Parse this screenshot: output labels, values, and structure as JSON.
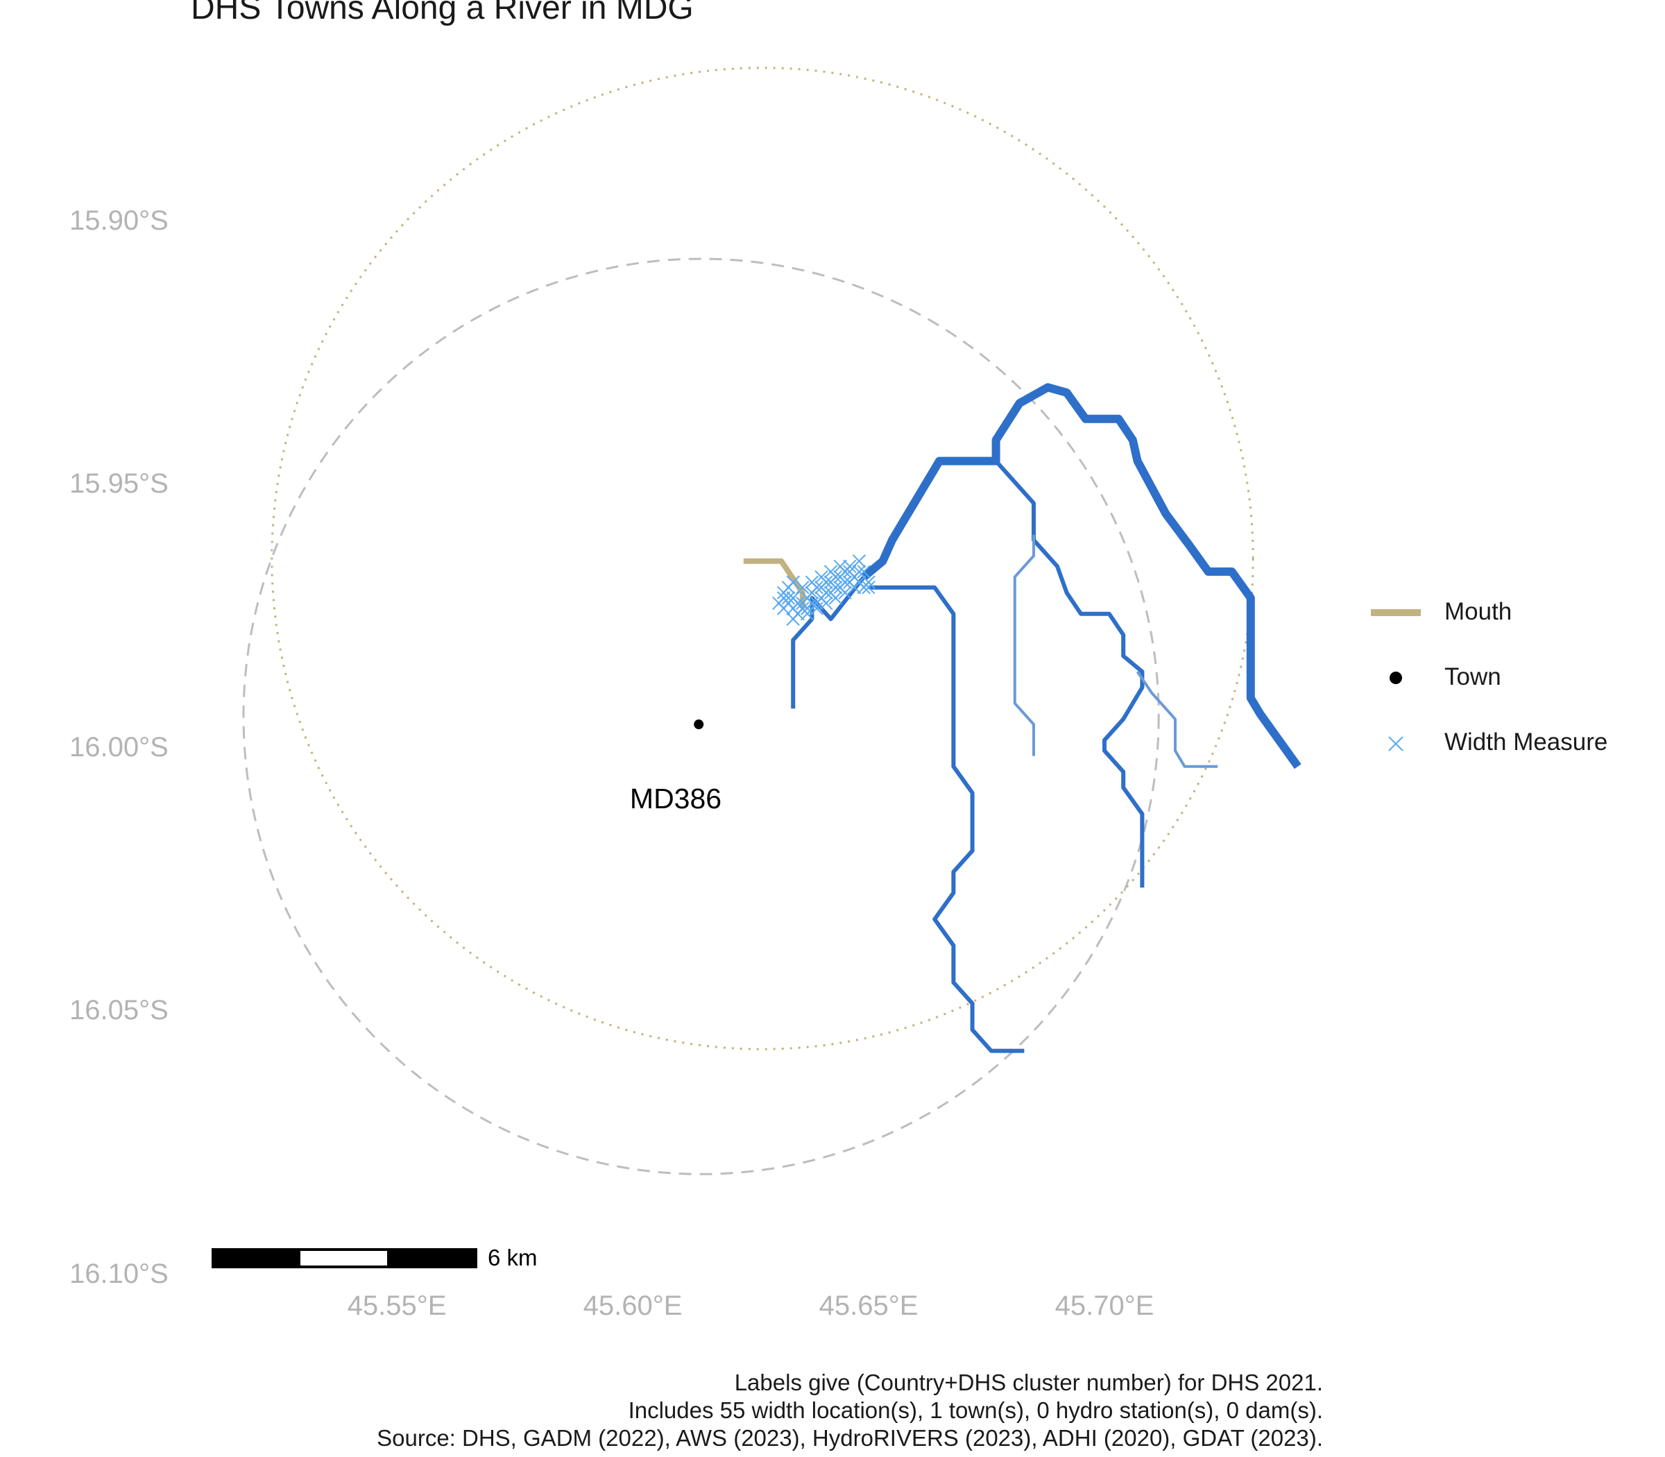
{
  "title": "DHS Towns Along a River in MDG",
  "caption": {
    "line1": "Labels give (Country+DHS cluster number) for DHS 2021.",
    "line2": "Includes 55 width location(s), 1 town(s), 0 hydro station(s), 0 dam(s).",
    "line3": "Source: DHS, GADM (2022), AWS (2023), HydroRIVERS (2023), ADHI (2020), GDAT (2023)."
  },
  "axes": {
    "y_ticks": [
      "15.90°S",
      "15.95°S",
      "16.00°S",
      "16.05°S",
      "16.10°S"
    ],
    "x_ticks": [
      "45.55°E",
      "45.60°E",
      "45.65°E",
      "45.70°E"
    ]
  },
  "legend": {
    "mouth": "Mouth",
    "town": "Town",
    "width_measure": "Width Measure"
  },
  "scale_bar": {
    "label": "6 km"
  },
  "town": {
    "label": "MD386"
  },
  "colors": {
    "river": "#2e6fc9",
    "river_light": "#6b9ad6",
    "mouth": "#c2b280",
    "width_measure": "#5aa9f0",
    "town": "#000000",
    "dashed_circle": "#bdbdbd",
    "dotted_circle": "#c2b280"
  },
  "map_data": {
    "town_point": [
      45.614,
      -15.995
    ],
    "dashed_circle": {
      "center": [
        45.6145,
        -15.9935
      ],
      "radius_lon": 0.097
    },
    "dotted_circle": {
      "center": [
        45.6275,
        -15.9635
      ],
      "radius_lon": 0.104
    },
    "rivers": [
      {
        "width": "thick",
        "coords": [
          [
            45.649,
            -15.967
          ],
          [
            45.653,
            -15.964
          ],
          [
            45.655,
            -15.96
          ],
          [
            45.665,
            -15.945
          ],
          [
            45.67,
            -15.945
          ],
          [
            45.677,
            -15.945
          ],
          [
            45.677,
            -15.941
          ],
          [
            45.682,
            -15.934
          ],
          [
            45.688,
            -15.931
          ],
          [
            45.692,
            -15.932
          ],
          [
            45.696,
            -15.937
          ],
          [
            45.703,
            -15.937
          ],
          [
            45.706,
            -15.941
          ],
          [
            45.707,
            -15.945
          ],
          [
            45.713,
            -15.955
          ],
          [
            45.718,
            -15.961
          ],
          [
            45.722,
            -15.966
          ],
          [
            45.727,
            -15.966
          ],
          [
            45.731,
            -15.971
          ],
          [
            45.731,
            -15.99
          ],
          [
            45.733,
            -15.993
          ],
          [
            45.741,
            -16.003
          ]
        ]
      },
      {
        "width": "medium",
        "coords": [
          [
            45.65,
            -15.969
          ],
          [
            45.664,
            -15.969
          ],
          [
            45.668,
            -15.974
          ],
          [
            45.668,
            -16.003
          ],
          [
            45.672,
            -16.008
          ],
          [
            45.672,
            -16.019
          ],
          [
            45.668,
            -16.023
          ],
          [
            45.668,
            -16.027
          ],
          [
            45.664,
            -16.032
          ],
          [
            45.668,
            -16.037
          ],
          [
            45.668,
            -16.044
          ],
          [
            45.672,
            -16.048
          ],
          [
            45.672,
            -16.053
          ],
          [
            45.676,
            -16.057
          ],
          [
            45.683,
            -16.057
          ]
        ]
      },
      {
        "width": "medium",
        "coords": [
          [
            45.649,
            -15.967
          ],
          [
            45.642,
            -15.975
          ],
          [
            45.638,
            -15.971
          ],
          [
            45.638,
            -15.975
          ],
          [
            45.634,
            -15.979
          ],
          [
            45.634,
            -15.986
          ],
          [
            45.634,
            -15.992
          ]
        ]
      },
      {
        "width": "medium",
        "coords": [
          [
            45.677,
            -15.945
          ],
          [
            45.681,
            -15.949
          ],
          [
            45.685,
            -15.953
          ],
          [
            45.685,
            -15.96
          ],
          [
            45.69,
            -15.965
          ],
          [
            45.692,
            -15.97
          ],
          [
            45.695,
            -15.974
          ],
          [
            45.701,
            -15.974
          ],
          [
            45.704,
            -15.978
          ],
          [
            45.704,
            -15.982
          ],
          [
            45.708,
            -15.985
          ],
          [
            45.708,
            -15.988
          ],
          [
            45.704,
            -15.994
          ],
          [
            45.7,
            -15.998
          ],
          [
            45.7,
            -16.0
          ],
          [
            45.704,
            -16.004
          ],
          [
            45.704,
            -16.007
          ],
          [
            45.708,
            -16.012
          ],
          [
            45.708,
            -16.019
          ],
          [
            45.708,
            -16.026
          ]
        ]
      },
      {
        "width": "thin",
        "coords": [
          [
            45.685,
            -15.959
          ],
          [
            45.685,
            -15.963
          ],
          [
            45.681,
            -15.967
          ],
          [
            45.681,
            -15.991
          ],
          [
            45.685,
            -15.995
          ],
          [
            45.685,
            -16.001
          ]
        ]
      },
      {
        "width": "thin",
        "coords": [
          [
            45.707,
            -15.985
          ],
          [
            45.71,
            -15.989
          ],
          [
            45.715,
            -15.994
          ],
          [
            45.715,
            -16.0
          ],
          [
            45.717,
            -16.003
          ],
          [
            45.724,
            -16.003
          ]
        ]
      }
    ],
    "mouth": [
      [
        45.6235,
        -15.964
      ],
      [
        45.627,
        -15.964
      ],
      [
        45.6315,
        -15.964
      ],
      [
        45.633,
        -15.966
      ],
      [
        45.636,
        -15.97
      ],
      [
        45.636,
        -15.973
      ]
    ],
    "width_measures": [
      [
        45.632,
        -15.97
      ],
      [
        45.633,
        -15.971
      ],
      [
        45.634,
        -15.971
      ],
      [
        45.635,
        -15.972
      ],
      [
        45.636,
        -15.972
      ],
      [
        45.637,
        -15.971
      ],
      [
        45.638,
        -15.97
      ],
      [
        45.639,
        -15.969
      ],
      [
        45.64,
        -15.969
      ],
      [
        45.641,
        -15.968
      ],
      [
        45.642,
        -15.968
      ],
      [
        45.643,
        -15.967
      ],
      [
        45.644,
        -15.967
      ],
      [
        45.645,
        -15.966
      ],
      [
        45.646,
        -15.966
      ],
      [
        45.647,
        -15.967
      ],
      [
        45.648,
        -15.968
      ],
      [
        45.649,
        -15.969
      ],
      [
        45.65,
        -15.969
      ],
      [
        45.65,
        -15.968
      ],
      [
        45.649,
        -15.966
      ],
      [
        45.648,
        -15.966
      ],
      [
        45.646,
        -15.968
      ],
      [
        45.645,
        -15.968
      ],
      [
        45.644,
        -15.969
      ],
      [
        45.643,
        -15.969
      ],
      [
        45.642,
        -15.97
      ],
      [
        45.641,
        -15.97
      ],
      [
        45.64,
        -15.971
      ],
      [
        45.639,
        -15.972
      ],
      [
        45.638,
        -15.972
      ],
      [
        45.637,
        -15.973
      ],
      [
        45.636,
        -15.973
      ],
      [
        45.635,
        -15.974
      ],
      [
        45.634,
        -15.973
      ],
      [
        45.633,
        -15.972
      ],
      [
        45.632,
        -15.971
      ],
      [
        45.631,
        -15.972
      ],
      [
        45.633,
        -15.969
      ],
      [
        45.634,
        -15.968
      ],
      [
        45.636,
        -15.969
      ],
      [
        45.638,
        -15.968
      ],
      [
        45.64,
        -15.967
      ],
      [
        45.642,
        -15.966
      ],
      [
        45.644,
        -15.965
      ],
      [
        45.646,
        -15.965
      ],
      [
        45.648,
        -15.964
      ],
      [
        45.647,
        -15.969
      ],
      [
        45.645,
        -15.97
      ],
      [
        45.643,
        -15.971
      ],
      [
        45.641,
        -15.972
      ],
      [
        45.639,
        -15.973
      ],
      [
        45.637,
        -15.974
      ],
      [
        45.634,
        -15.975
      ],
      [
        45.632,
        -15.973
      ]
    ]
  }
}
